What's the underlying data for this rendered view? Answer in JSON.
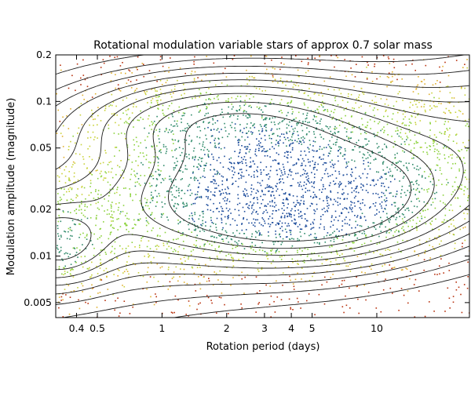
{
  "chart_data": {
    "type": "scatter",
    "title": "Rotational modulation variable stars of approx 0.7 solar mass",
    "xlabel": "Rotation period (days)",
    "ylabel": "Modulation amplitude (magnitude)",
    "xscale": "log",
    "yscale": "log",
    "xlim": [
      0.32,
      27
    ],
    "ylim": [
      0.004,
      0.2
    ],
    "xticks": [
      {
        "value": 0.4,
        "label": "0.4"
      },
      {
        "value": 0.5,
        "label": "0.5"
      },
      {
        "value": 1,
        "label": "1"
      },
      {
        "value": 2,
        "label": "2"
      },
      {
        "value": 3,
        "label": "3"
      },
      {
        "value": 4,
        "label": "4"
      },
      {
        "value": 5,
        "label": "5"
      },
      {
        "value": 10,
        "label": "10"
      }
    ],
    "yticks": [
      {
        "value": 0.005,
        "label": "0.005"
      },
      {
        "value": 0.01,
        "label": "0.01"
      },
      {
        "value": 0.02,
        "label": "0.02"
      },
      {
        "value": 0.05,
        "label": "0.05"
      },
      {
        "value": 0.1,
        "label": "0.1"
      },
      {
        "value": 0.2,
        "label": "0.2"
      }
    ],
    "density_peaks": [
      {
        "x": 4.2,
        "y": 0.023,
        "weight": 1.0
      },
      {
        "x": 2.0,
        "y": 0.075,
        "weight": 0.55
      },
      {
        "x": 0.33,
        "y": 0.012,
        "weight": 0.35
      }
    ],
    "colors": {
      "background": "#ffffff",
      "points_low": "#b8320f",
      "points_mid": "#e0b030",
      "points_high": "#8cd23c",
      "points_peak": "#1a4a9a",
      "contour": "#1c1c1c",
      "frame": "#000000"
    }
  }
}
